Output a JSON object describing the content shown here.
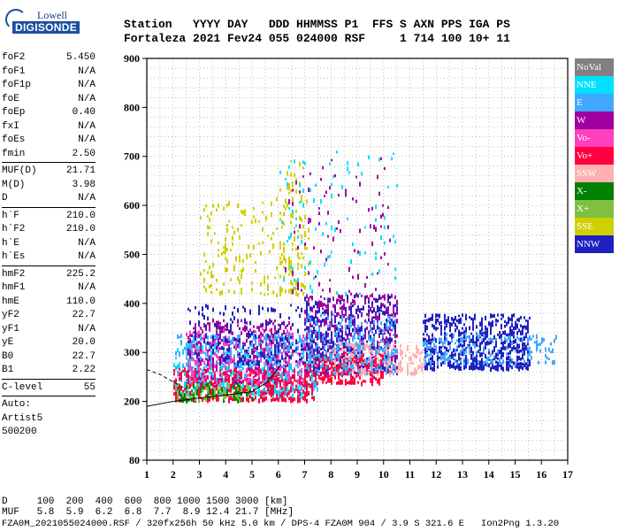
{
  "logo": {
    "line1": "Lowell",
    "line2": "DIGISONDE"
  },
  "header": {
    "row1": "Station   YYYY DAY   DDD HHMMSS P1  FFS S AXN PPS IGA PS",
    "row2": "Fortaleza 2021 Fev24 055 024000 RSF     1 714 100 10+ 11"
  },
  "params": [
    {
      "k": "foF2",
      "v": "5.450"
    },
    {
      "k": "foF1",
      "v": "N/A"
    },
    {
      "k": "foF1p",
      "v": "N/A"
    },
    {
      "k": "foE",
      "v": "N/A"
    },
    {
      "k": "foEp",
      "v": "0.40"
    },
    {
      "k": "fxI",
      "v": "N/A"
    },
    {
      "k": "foEs",
      "v": "N/A"
    },
    {
      "k": "fmin",
      "v": "2.50"
    },
    {
      "sep": true
    },
    {
      "k": "MUF(D)",
      "v": "21.71"
    },
    {
      "k": "M(D)",
      "v": "3.98"
    },
    {
      "k": "D",
      "v": "N/A"
    },
    {
      "sep": true
    },
    {
      "k": "h`F",
      "v": "210.0"
    },
    {
      "k": "h`F2",
      "v": "210.0"
    },
    {
      "k": "h`E",
      "v": "N/A"
    },
    {
      "k": "h`Es",
      "v": "N/A"
    },
    {
      "sep": true
    },
    {
      "k": "hmF2",
      "v": "225.2"
    },
    {
      "k": "hmF1",
      "v": "N/A"
    },
    {
      "k": "hmE",
      "v": "110.0"
    },
    {
      "k": "yF2",
      "v": "22.7"
    },
    {
      "k": "yF1",
      "v": "N/A"
    },
    {
      "k": "yE",
      "v": "20.0"
    },
    {
      "k": "B0",
      "v": "22.7"
    },
    {
      "k": "B1",
      "v": "2.22"
    },
    {
      "sep": true
    },
    {
      "k": "C-level",
      "v": "55"
    },
    {
      "sep": true
    },
    {
      "k": "Auto:",
      "v": ""
    },
    {
      "k": "Artist5",
      "v": ""
    },
    {
      "k": "500200",
      "v": ""
    }
  ],
  "legend": [
    {
      "label": "NoVal",
      "color": "#808080"
    },
    {
      "label": "NNE",
      "color": "#00e0ff"
    },
    {
      "label": "E",
      "color": "#40a8ff"
    },
    {
      "label": "W",
      "color": "#a000a0"
    },
    {
      "label": "Vo-",
      "color": "#ff40c0"
    },
    {
      "label": "Vo+",
      "color": "#ff0040"
    },
    {
      "label": "SSW",
      "color": "#ffb0b0"
    },
    {
      "label": "X-",
      "color": "#008000"
    },
    {
      "label": "X+",
      "color": "#80c040"
    },
    {
      "label": "SSE",
      "color": "#d0d000"
    },
    {
      "label": "NNW",
      "color": "#2020c0"
    }
  ],
  "footer": {
    "d_row": "D     100  200  400  600  800 1000 1500 3000 [km]",
    "muf_row": "MUF   5.8  5.9  6.2  6.8  7.7  8.9 12.4 21.7 [MHz]",
    "file_row": "FZA0M_2021055024000.RSF / 320fx256h 50 kHz 5.0 km / DPS-4 FZA0M 904 / 3.9 S 321.6 E   Ion2Png 1.3.20"
  },
  "chart_data": {
    "type": "scatter",
    "xlim": [
      1,
      17
    ],
    "ylim": [
      80,
      900
    ],
    "x_ticks": [
      1,
      2,
      3,
      4,
      5,
      6,
      7,
      8,
      9,
      10,
      11,
      12,
      13,
      14,
      15,
      16,
      17
    ],
    "y_ticks": [
      80,
      200,
      300,
      400,
      500,
      600,
      700,
      800,
      900
    ],
    "xlabel": "",
    "ylabel": "",
    "grid": true,
    "clusters": [
      {
        "series": "W",
        "x": [
          2.5,
          6.5
        ],
        "y": [
          240,
          370
        ],
        "n": 520
      },
      {
        "series": "E",
        "x": [
          2.0,
          7.5
        ],
        "y": [
          220,
          340
        ],
        "n": 480
      },
      {
        "series": "NNE",
        "x": [
          2.0,
          7.5
        ],
        "y": [
          210,
          320
        ],
        "n": 260
      },
      {
        "series": "Vo+",
        "x": [
          2.0,
          7.3
        ],
        "y": [
          205,
          270
        ],
        "n": 420
      },
      {
        "series": "Vo-",
        "x": [
          2.5,
          7.0
        ],
        "y": [
          240,
          350
        ],
        "n": 180
      },
      {
        "series": "NNW",
        "x": [
          2.5,
          7.5
        ],
        "y": [
          280,
          400
        ],
        "n": 220
      },
      {
        "series": "SSE",
        "x": [
          3.0,
          7.2
        ],
        "y": [
          420,
          620
        ],
        "n": 180
      },
      {
        "series": "SSE",
        "x": [
          6.0,
          7.0
        ],
        "y": [
          420,
          700
        ],
        "n": 80
      },
      {
        "series": "NNE",
        "x": [
          6.0,
          10.5
        ],
        "y": [
          420,
          720
        ],
        "n": 90
      },
      {
        "series": "W",
        "x": [
          7.0,
          10.5
        ],
        "y": [
          260,
          420
        ],
        "n": 520
      },
      {
        "series": "NNW",
        "x": [
          7.0,
          10.5
        ],
        "y": [
          270,
          420
        ],
        "n": 300
      },
      {
        "series": "SSW",
        "x": [
          8.0,
          11.5
        ],
        "y": [
          260,
          320
        ],
        "n": 260
      },
      {
        "series": "Vo+",
        "x": [
          7.0,
          10.0
        ],
        "y": [
          240,
          300
        ],
        "n": 220
      },
      {
        "series": "E",
        "x": [
          7.0,
          10.5
        ],
        "y": [
          260,
          380
        ],
        "n": 260
      },
      {
        "series": "NNW",
        "x": [
          11.5,
          15.5
        ],
        "y": [
          270,
          380
        ],
        "n": 620
      },
      {
        "series": "E",
        "x": [
          11.5,
          16.5
        ],
        "y": [
          280,
          340
        ],
        "n": 180
      },
      {
        "series": "X-",
        "x": [
          2.0,
          5.0
        ],
        "y": [
          205,
          240
        ],
        "n": 90
      },
      {
        "series": "X+",
        "x": [
          2.0,
          5.0
        ],
        "y": [
          205,
          240
        ],
        "n": 60
      },
      {
        "series": "W",
        "x": [
          6.2,
          10.2
        ],
        "y": [
          420,
          700
        ],
        "n": 90
      }
    ],
    "trace_lines": [
      {
        "name": "virtual-height-trace",
        "points": [
          [
            1,
            190
          ],
          [
            2,
            200
          ],
          [
            3,
            207
          ],
          [
            4,
            213
          ],
          [
            5,
            220
          ],
          [
            5.6,
            240
          ],
          [
            6.1,
            275
          ]
        ]
      },
      {
        "name": "o-trace-low",
        "points": [
          [
            1,
            265
          ],
          [
            1.5,
            255
          ],
          [
            2,
            240
          ],
          [
            2.5,
            225
          ]
        ]
      }
    ]
  }
}
